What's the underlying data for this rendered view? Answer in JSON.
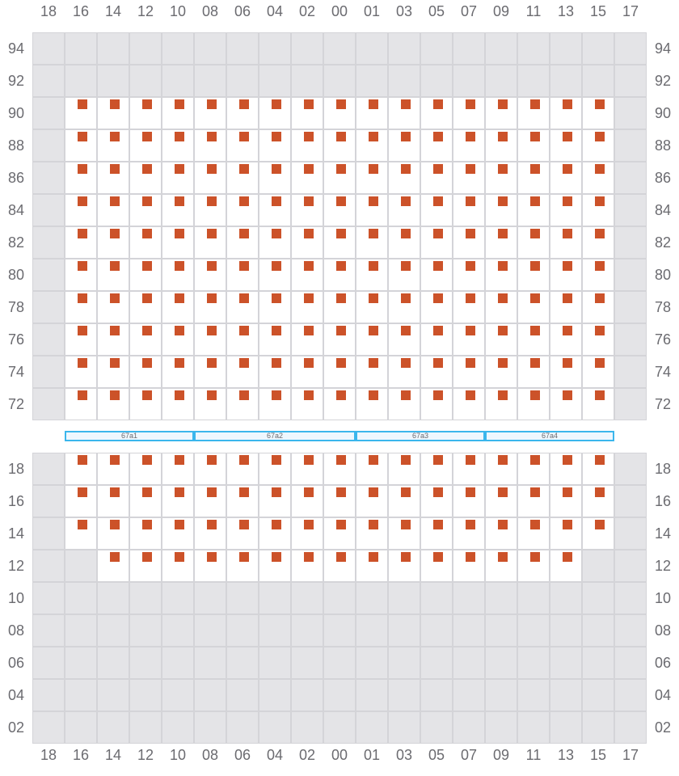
{
  "columns": [
    "18",
    "16",
    "14",
    "12",
    "10",
    "08",
    "06",
    "04",
    "02",
    "00",
    "01",
    "03",
    "05",
    "07",
    "09",
    "11",
    "13",
    "15",
    "17"
  ],
  "colors": {
    "seat": "#cc5229",
    "unavailable": "#e4e4e7",
    "available": "#ffffff",
    "grid_line": "#d4d4d8",
    "block_border": "#3bb6ec"
  },
  "top_section": {
    "rows": [
      {
        "label": "94",
        "active_range": null
      },
      {
        "label": "92",
        "active_range": null
      },
      {
        "label": "90",
        "active_range": [
          "16",
          "15"
        ]
      },
      {
        "label": "88",
        "active_range": [
          "16",
          "15"
        ]
      },
      {
        "label": "86",
        "active_range": [
          "16",
          "15"
        ]
      },
      {
        "label": "84",
        "active_range": [
          "16",
          "15"
        ]
      },
      {
        "label": "82",
        "active_range": [
          "16",
          "15"
        ]
      },
      {
        "label": "80",
        "active_range": [
          "16",
          "15"
        ]
      },
      {
        "label": "78",
        "active_range": [
          "16",
          "15"
        ]
      },
      {
        "label": "76",
        "active_range": [
          "16",
          "15"
        ]
      },
      {
        "label": "74",
        "active_range": [
          "16",
          "15"
        ]
      },
      {
        "label": "72",
        "active_range": [
          "16",
          "15"
        ]
      }
    ]
  },
  "blocks": [
    {
      "label": "67a1",
      "from": "16",
      "to": "10"
    },
    {
      "label": "67a2",
      "from": "08",
      "to": "00"
    },
    {
      "label": "67a3",
      "from": "01",
      "to": "07"
    },
    {
      "label": "67a4",
      "from": "09",
      "to": "15"
    }
  ],
  "bottom_section": {
    "rows": [
      {
        "label": "18",
        "active_range": [
          "16",
          "15"
        ]
      },
      {
        "label": "16",
        "active_range": [
          "16",
          "15"
        ]
      },
      {
        "label": "14",
        "active_range": [
          "16",
          "15"
        ]
      },
      {
        "label": "12",
        "active_range": [
          "14",
          "13"
        ]
      },
      {
        "label": "10",
        "active_range": null
      },
      {
        "label": "08",
        "active_range": null
      },
      {
        "label": "06",
        "active_range": null
      },
      {
        "label": "04",
        "active_range": null
      },
      {
        "label": "02",
        "active_range": null
      }
    ]
  }
}
